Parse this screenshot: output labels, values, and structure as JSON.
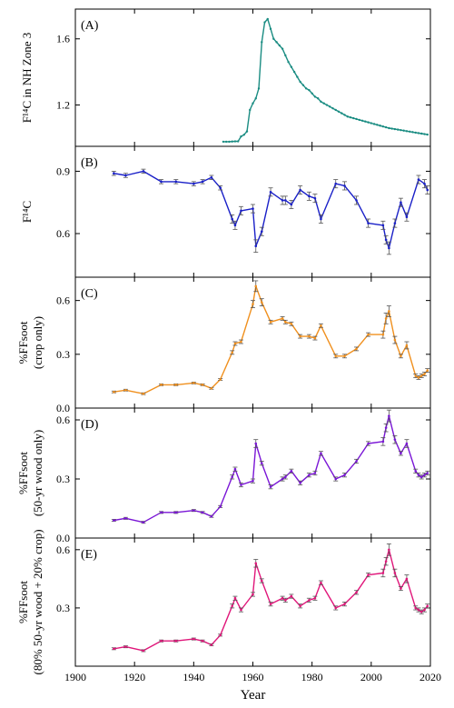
{
  "chart_data": [
    {
      "type": "line",
      "panel_label": "(A)",
      "ylabel": "F¹⁴C in NH Zone 3",
      "ylim": [
        0.95,
        1.78
      ],
      "yticks": [
        1.2,
        1.6
      ],
      "ytick_labels": [
        "1.2",
        "1.6"
      ],
      "xlim": [
        1900,
        2020
      ],
      "color": "#1a8c82",
      "marker": "dot",
      "series": [
        {
          "x": [
            1950,
            1951,
            1952,
            1953,
            1954,
            1955,
            1956,
            1957,
            1958,
            1959,
            1960,
            1961,
            1962,
            1963,
            1964,
            1965,
            1966,
            1967,
            1968,
            1969,
            1970,
            1971,
            1972,
            1973,
            1974,
            1975,
            1976,
            1977,
            1978,
            1979,
            1980,
            1981,
            1982,
            1983,
            1984,
            1985,
            1986,
            1987,
            1988,
            1989,
            1990,
            1991,
            1992,
            1993,
            1994,
            1995,
            1996,
            1997,
            1998,
            1999,
            2000,
            2001,
            2002,
            2003,
            2004,
            2005,
            2006,
            2007,
            2008,
            2009,
            2010,
            2011,
            2012,
            2013,
            2014,
            2015,
            2016,
            2017,
            2018,
            2019
          ],
          "y": [
            0.978,
            0.978,
            0.978,
            0.979,
            0.98,
            0.98,
            1.01,
            1.02,
            1.04,
            1.17,
            1.21,
            1.24,
            1.3,
            1.58,
            1.7,
            1.72,
            1.66,
            1.6,
            1.58,
            1.56,
            1.54,
            1.5,
            1.46,
            1.43,
            1.4,
            1.37,
            1.34,
            1.32,
            1.3,
            1.29,
            1.27,
            1.25,
            1.24,
            1.22,
            1.21,
            1.2,
            1.19,
            1.18,
            1.17,
            1.16,
            1.15,
            1.14,
            1.13,
            1.125,
            1.12,
            1.115,
            1.11,
            1.105,
            1.1,
            1.095,
            1.09,
            1.085,
            1.08,
            1.075,
            1.07,
            1.065,
            1.06,
            1.057,
            1.054,
            1.051,
            1.048,
            1.045,
            1.042,
            1.039,
            1.036,
            1.033,
            1.03,
            1.027,
            1.024,
            1.021
          ]
        }
      ]
    },
    {
      "type": "line",
      "panel_label": "(B)",
      "ylabel": "F¹⁴C",
      "ylim": [
        0.39,
        1.02
      ],
      "yticks": [
        0.6,
        0.9
      ],
      "ytick_labels": [
        "0.6",
        "0.9"
      ],
      "xlim": [
        1900,
        2020
      ],
      "color": "#1a20c8",
      "error_bars": true,
      "series": [
        {
          "x": [
            1913,
            1917,
            1923,
            1929,
            1934,
            1940,
            1943,
            1946,
            1949,
            1953,
            1954,
            1956,
            1960,
            1961,
            1963,
            1966,
            1970,
            1971,
            1973,
            1976,
            1979,
            1981,
            1983,
            1988,
            1991,
            1995,
            1999,
            2004,
            2005,
            2006,
            2008,
            2010,
            2012,
            2016,
            2018,
            2019
          ],
          "y": [
            0.89,
            0.88,
            0.9,
            0.85,
            0.85,
            0.84,
            0.85,
            0.87,
            0.82,
            0.67,
            0.64,
            0.71,
            0.72,
            0.54,
            0.61,
            0.8,
            0.76,
            0.76,
            0.74,
            0.81,
            0.78,
            0.77,
            0.67,
            0.84,
            0.83,
            0.76,
            0.65,
            0.64,
            0.57,
            0.53,
            0.65,
            0.75,
            0.68,
            0.86,
            0.84,
            0.81
          ],
          "err": [
            0.01,
            0.01,
            0.01,
            0.01,
            0.01,
            0.01,
            0.01,
            0.01,
            0.01,
            0.02,
            0.02,
            0.02,
            0.02,
            0.03,
            0.02,
            0.02,
            0.02,
            0.02,
            0.02,
            0.02,
            0.02,
            0.02,
            0.02,
            0.02,
            0.02,
            0.02,
            0.02,
            0.02,
            0.02,
            0.03,
            0.02,
            0.02,
            0.02,
            0.02,
            0.02,
            0.02
          ]
        }
      ]
    },
    {
      "type": "line",
      "panel_label": "(C)",
      "ylabel_lines": [
        "%FFsoot",
        "(crop only)"
      ],
      "ylim": [
        0.0,
        0.73
      ],
      "yticks": [
        0.0,
        0.3,
        0.6
      ],
      "ytick_labels": [
        "0.0",
        "0.3",
        "0.6"
      ],
      "xlim": [
        1900,
        2020
      ],
      "color": "#f0901e",
      "error_bars": true,
      "series": [
        {
          "x": [
            1913,
            1917,
            1923,
            1929,
            1934,
            1940,
            1943,
            1946,
            1949,
            1953,
            1954,
            1956,
            1960,
            1961,
            1963,
            1966,
            1970,
            1971,
            1973,
            1976,
            1979,
            1981,
            1983,
            1988,
            1991,
            1995,
            1999,
            2004,
            2005,
            2006,
            2008,
            2010,
            2012,
            2015,
            2016,
            2017,
            2018,
            2019
          ],
          "y": [
            0.09,
            0.1,
            0.08,
            0.13,
            0.13,
            0.14,
            0.13,
            0.11,
            0.16,
            0.31,
            0.36,
            0.37,
            0.58,
            0.68,
            0.59,
            0.48,
            0.5,
            0.48,
            0.47,
            0.4,
            0.4,
            0.39,
            0.46,
            0.29,
            0.29,
            0.33,
            0.41,
            0.41,
            0.5,
            0.54,
            0.38,
            0.29,
            0.35,
            0.18,
            0.17,
            0.18,
            0.19,
            0.21
          ],
          "err": [
            0.005,
            0.005,
            0.005,
            0.005,
            0.005,
            0.005,
            0.005,
            0.005,
            0.005,
            0.01,
            0.01,
            0.01,
            0.02,
            0.03,
            0.02,
            0.01,
            0.01,
            0.01,
            0.01,
            0.01,
            0.01,
            0.01,
            0.01,
            0.01,
            0.01,
            0.01,
            0.01,
            0.02,
            0.03,
            0.03,
            0.02,
            0.01,
            0.02,
            0.01,
            0.01,
            0.01,
            0.01,
            0.01
          ]
        }
      ]
    },
    {
      "type": "line",
      "panel_label": "(D)",
      "ylabel_lines": [
        "%FFsoot",
        "(50-yr wood only)"
      ],
      "ylim": [
        0.0,
        0.66
      ],
      "yticks": [
        0.0,
        0.3,
        0.6
      ],
      "ytick_labels": [
        "0.0",
        "0.3",
        "0.6"
      ],
      "xlim": [
        1900,
        2020
      ],
      "color": "#7a16d6",
      "error_bars": true,
      "series": [
        {
          "x": [
            1913,
            1917,
            1923,
            1929,
            1934,
            1940,
            1943,
            1946,
            1949,
            1953,
            1954,
            1956,
            1960,
            1961,
            1963,
            1966,
            1970,
            1971,
            1973,
            1976,
            1979,
            1981,
            1983,
            1988,
            1991,
            1995,
            1999,
            2004,
            2005,
            2006,
            2008,
            2010,
            2012,
            2015,
            2016,
            2017,
            2018,
            2019
          ],
          "y": [
            0.09,
            0.1,
            0.08,
            0.13,
            0.13,
            0.14,
            0.13,
            0.11,
            0.16,
            0.31,
            0.35,
            0.27,
            0.29,
            0.48,
            0.38,
            0.26,
            0.3,
            0.31,
            0.34,
            0.28,
            0.32,
            0.33,
            0.43,
            0.3,
            0.32,
            0.39,
            0.48,
            0.49,
            0.56,
            0.62,
            0.5,
            0.43,
            0.48,
            0.34,
            0.32,
            0.31,
            0.32,
            0.33
          ],
          "err": [
            0.005,
            0.005,
            0.005,
            0.005,
            0.005,
            0.005,
            0.005,
            0.005,
            0.005,
            0.01,
            0.01,
            0.01,
            0.01,
            0.02,
            0.01,
            0.01,
            0.01,
            0.01,
            0.01,
            0.01,
            0.01,
            0.01,
            0.01,
            0.01,
            0.01,
            0.01,
            0.01,
            0.02,
            0.02,
            0.03,
            0.02,
            0.01,
            0.02,
            0.01,
            0.01,
            0.01,
            0.01,
            0.01
          ]
        }
      ]
    },
    {
      "type": "line",
      "panel_label": "(E)",
      "ylabel_lines": [
        "%FFsoot",
        "(80% 50-yr wood + 20% crop)"
      ],
      "ylim": [
        0.0,
        0.66
      ],
      "yticks": [
        0.3,
        0.6
      ],
      "ytick_labels": [
        "0.3",
        "0.6"
      ],
      "xlim": [
        1900,
        2020
      ],
      "xticks": [
        1900,
        1920,
        1940,
        1960,
        1980,
        2000,
        2020
      ],
      "xtick_labels": [
        "1900",
        "1920",
        "1940",
        "1960",
        "1980",
        "2000",
        "2020"
      ],
      "xlabel": "Year",
      "color": "#e0167a",
      "error_bars": true,
      "series": [
        {
          "x": [
            1913,
            1917,
            1923,
            1929,
            1934,
            1940,
            1943,
            1946,
            1949,
            1953,
            1954,
            1956,
            1960,
            1961,
            1963,
            1966,
            1970,
            1971,
            1973,
            1976,
            1979,
            1981,
            1983,
            1988,
            1991,
            1995,
            1999,
            2004,
            2005,
            2006,
            2008,
            2010,
            2012,
            2015,
            2016,
            2017,
            2018,
            2019
          ],
          "y": [
            0.09,
            0.1,
            0.08,
            0.13,
            0.13,
            0.14,
            0.13,
            0.11,
            0.16,
            0.31,
            0.35,
            0.29,
            0.37,
            0.53,
            0.44,
            0.32,
            0.35,
            0.34,
            0.36,
            0.31,
            0.34,
            0.35,
            0.43,
            0.3,
            0.32,
            0.38,
            0.47,
            0.48,
            0.54,
            0.6,
            0.48,
            0.4,
            0.45,
            0.3,
            0.29,
            0.28,
            0.29,
            0.31
          ],
          "err": [
            0.005,
            0.005,
            0.005,
            0.005,
            0.005,
            0.005,
            0.005,
            0.005,
            0.005,
            0.01,
            0.01,
            0.01,
            0.01,
            0.02,
            0.01,
            0.01,
            0.01,
            0.01,
            0.01,
            0.01,
            0.01,
            0.01,
            0.01,
            0.01,
            0.01,
            0.01,
            0.01,
            0.02,
            0.02,
            0.03,
            0.02,
            0.01,
            0.02,
            0.01,
            0.01,
            0.01,
            0.01,
            0.01
          ]
        }
      ]
    }
  ]
}
